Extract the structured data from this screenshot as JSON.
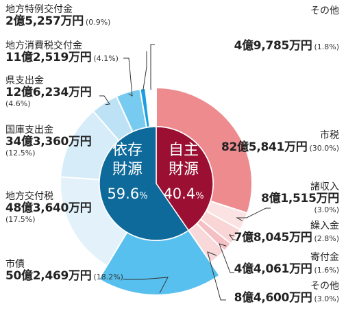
{
  "chart_data": {
    "type": "pie",
    "center": {
      "left": {
        "line1": "依存",
        "line2": "財源",
        "value": "59.6",
        "unit": "%"
      },
      "right": {
        "line1": "自主",
        "line2": "財源",
        "value": "40.4",
        "unit": "%"
      }
    },
    "slices": [
      {
        "name": "市税",
        "amount": "82億5,841万円",
        "percent_text": "(30.0%)",
        "percent": 30.0,
        "group": "自主",
        "color": "#ed8b8f"
      },
      {
        "name": "諸収入",
        "amount": "8億1,515万円",
        "percent_text": "(3.0%)",
        "percent": 3.0,
        "group": "自主",
        "color": "#fbe2e3"
      },
      {
        "name": "繰入金",
        "amount": "7億8,045万円",
        "percent_text": "(2.8%)",
        "percent": 2.8,
        "group": "自主",
        "color": "#f9d5d6"
      },
      {
        "name": "寄付金",
        "amount": "4億4,061万円",
        "percent_text": "(1.6%)",
        "percent": 1.6,
        "group": "自主",
        "color": "#f5c0c3"
      },
      {
        "name": "その他",
        "amount": "8億4,600万円",
        "percent_text": "(3.0%)",
        "percent": 3.0,
        "group": "自主",
        "color": "#f9d8d9"
      },
      {
        "name": "市債",
        "amount": "50億2,469万円",
        "percent_text": "(18.2%)",
        "percent": 18.2,
        "group": "依存",
        "color": "#57c0ee"
      },
      {
        "name": "地方交付税",
        "amount": "48億3,640万円",
        "percent_text": "(17.5%)",
        "percent": 17.5,
        "group": "依存",
        "color": "#e3f1fb"
      },
      {
        "name": "国庫支出金",
        "amount": "34億3,360万円",
        "percent_text": "(12.5%)",
        "percent": 12.5,
        "group": "依存",
        "color": "#d7ecf9"
      },
      {
        "name": "県支出金",
        "amount": "12億6,234万円",
        "percent_text": "(4.6%)",
        "percent": 4.6,
        "group": "依存",
        "color": "#bde2f6"
      },
      {
        "name": "地方消費税交付金",
        "amount": "11億2,519万円",
        "percent_text": "(4.1%)",
        "percent": 4.1,
        "group": "依存",
        "color": "#78cbf0"
      },
      {
        "name": "地方特例交付金",
        "amount": "2億5,257万円",
        "percent_text": "(0.9%)",
        "percent": 0.9,
        "group": "依存",
        "color": "#1d9ee0"
      },
      {
        "name": "その他",
        "amount": "4億9,785万円",
        "percent_text": "(1.8%)",
        "percent": 1.8,
        "group": "依存",
        "color": "#ffffff"
      }
    ],
    "inner_colors": {
      "自主": "#9a0f32",
      "依存": "#0e6a9a"
    }
  }
}
